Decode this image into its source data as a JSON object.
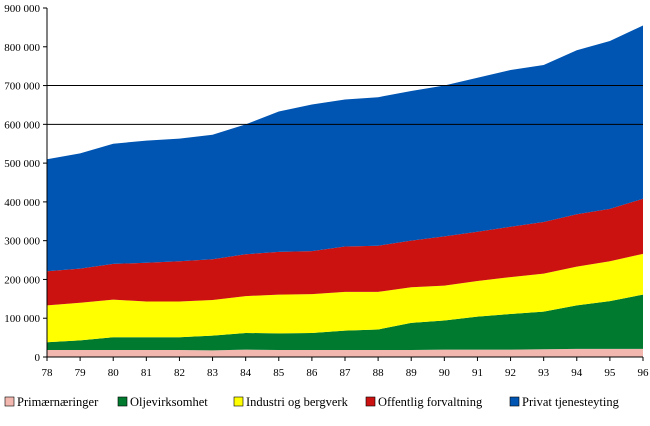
{
  "chart_data": {
    "type": "area",
    "stacked": true,
    "title": "",
    "xlabel": "",
    "ylabel": "",
    "ylim": [
      0,
      900000
    ],
    "y_ticks": [
      0,
      100000,
      200000,
      300000,
      400000,
      500000,
      600000,
      700000,
      800000,
      900000
    ],
    "y_tick_labels": [
      "0",
      "100 000",
      "200 000",
      "300 000",
      "400 000",
      "500 000",
      "600 000",
      "700 000",
      "800 000",
      "900 000"
    ],
    "gridlines_at": [
      600000,
      700000
    ],
    "categories": [
      "78",
      "79",
      "80",
      "81",
      "82",
      "83",
      "84",
      "85",
      "86",
      "87",
      "88",
      "89",
      "90",
      "91",
      "92",
      "93",
      "94",
      "95",
      "96"
    ],
    "legend_position": "bottom",
    "series": [
      {
        "name": "Primærnæringer",
        "color": "#f2b8b0",
        "values": [
          18000,
          18000,
          18000,
          18000,
          18000,
          17000,
          19000,
          18000,
          18000,
          18000,
          18000,
          18000,
          19000,
          19000,
          19000,
          20000,
          21000,
          21000,
          21000
        ]
      },
      {
        "name": "Oljevirksomhet",
        "color": "#007a2f",
        "values": [
          20000,
          25000,
          33000,
          33000,
          33000,
          38000,
          43000,
          43000,
          44000,
          50000,
          53000,
          70000,
          75000,
          85000,
          92000,
          97000,
          112000,
          123000,
          140000
        ]
      },
      {
        "name": "Industri og bergverk",
        "color": "#ffff00",
        "values": [
          95000,
          97000,
          97000,
          92000,
          92000,
          92000,
          95000,
          100000,
          100000,
          100000,
          97000,
          92000,
          90000,
          92000,
          95000,
          98000,
          100000,
          103000,
          105000
        ]
      },
      {
        "name": "Offentlig forvaltning",
        "color": "#cc1111",
        "values": [
          88000,
          88000,
          92000,
          100000,
          104000,
          105000,
          108000,
          110000,
          111000,
          117000,
          119000,
          120000,
          127000,
          127000,
          130000,
          133000,
          135000,
          135000,
          142000
        ]
      },
      {
        "name": "Privat tjenesteyting",
        "color": "#0055b3",
        "values": [
          289000,
          297000,
          310000,
          315000,
          316000,
          321000,
          335000,
          362000,
          378000,
          379000,
          383000,
          386000,
          389000,
          397000,
          404000,
          405000,
          423000,
          433000,
          447000
        ]
      }
    ]
  }
}
